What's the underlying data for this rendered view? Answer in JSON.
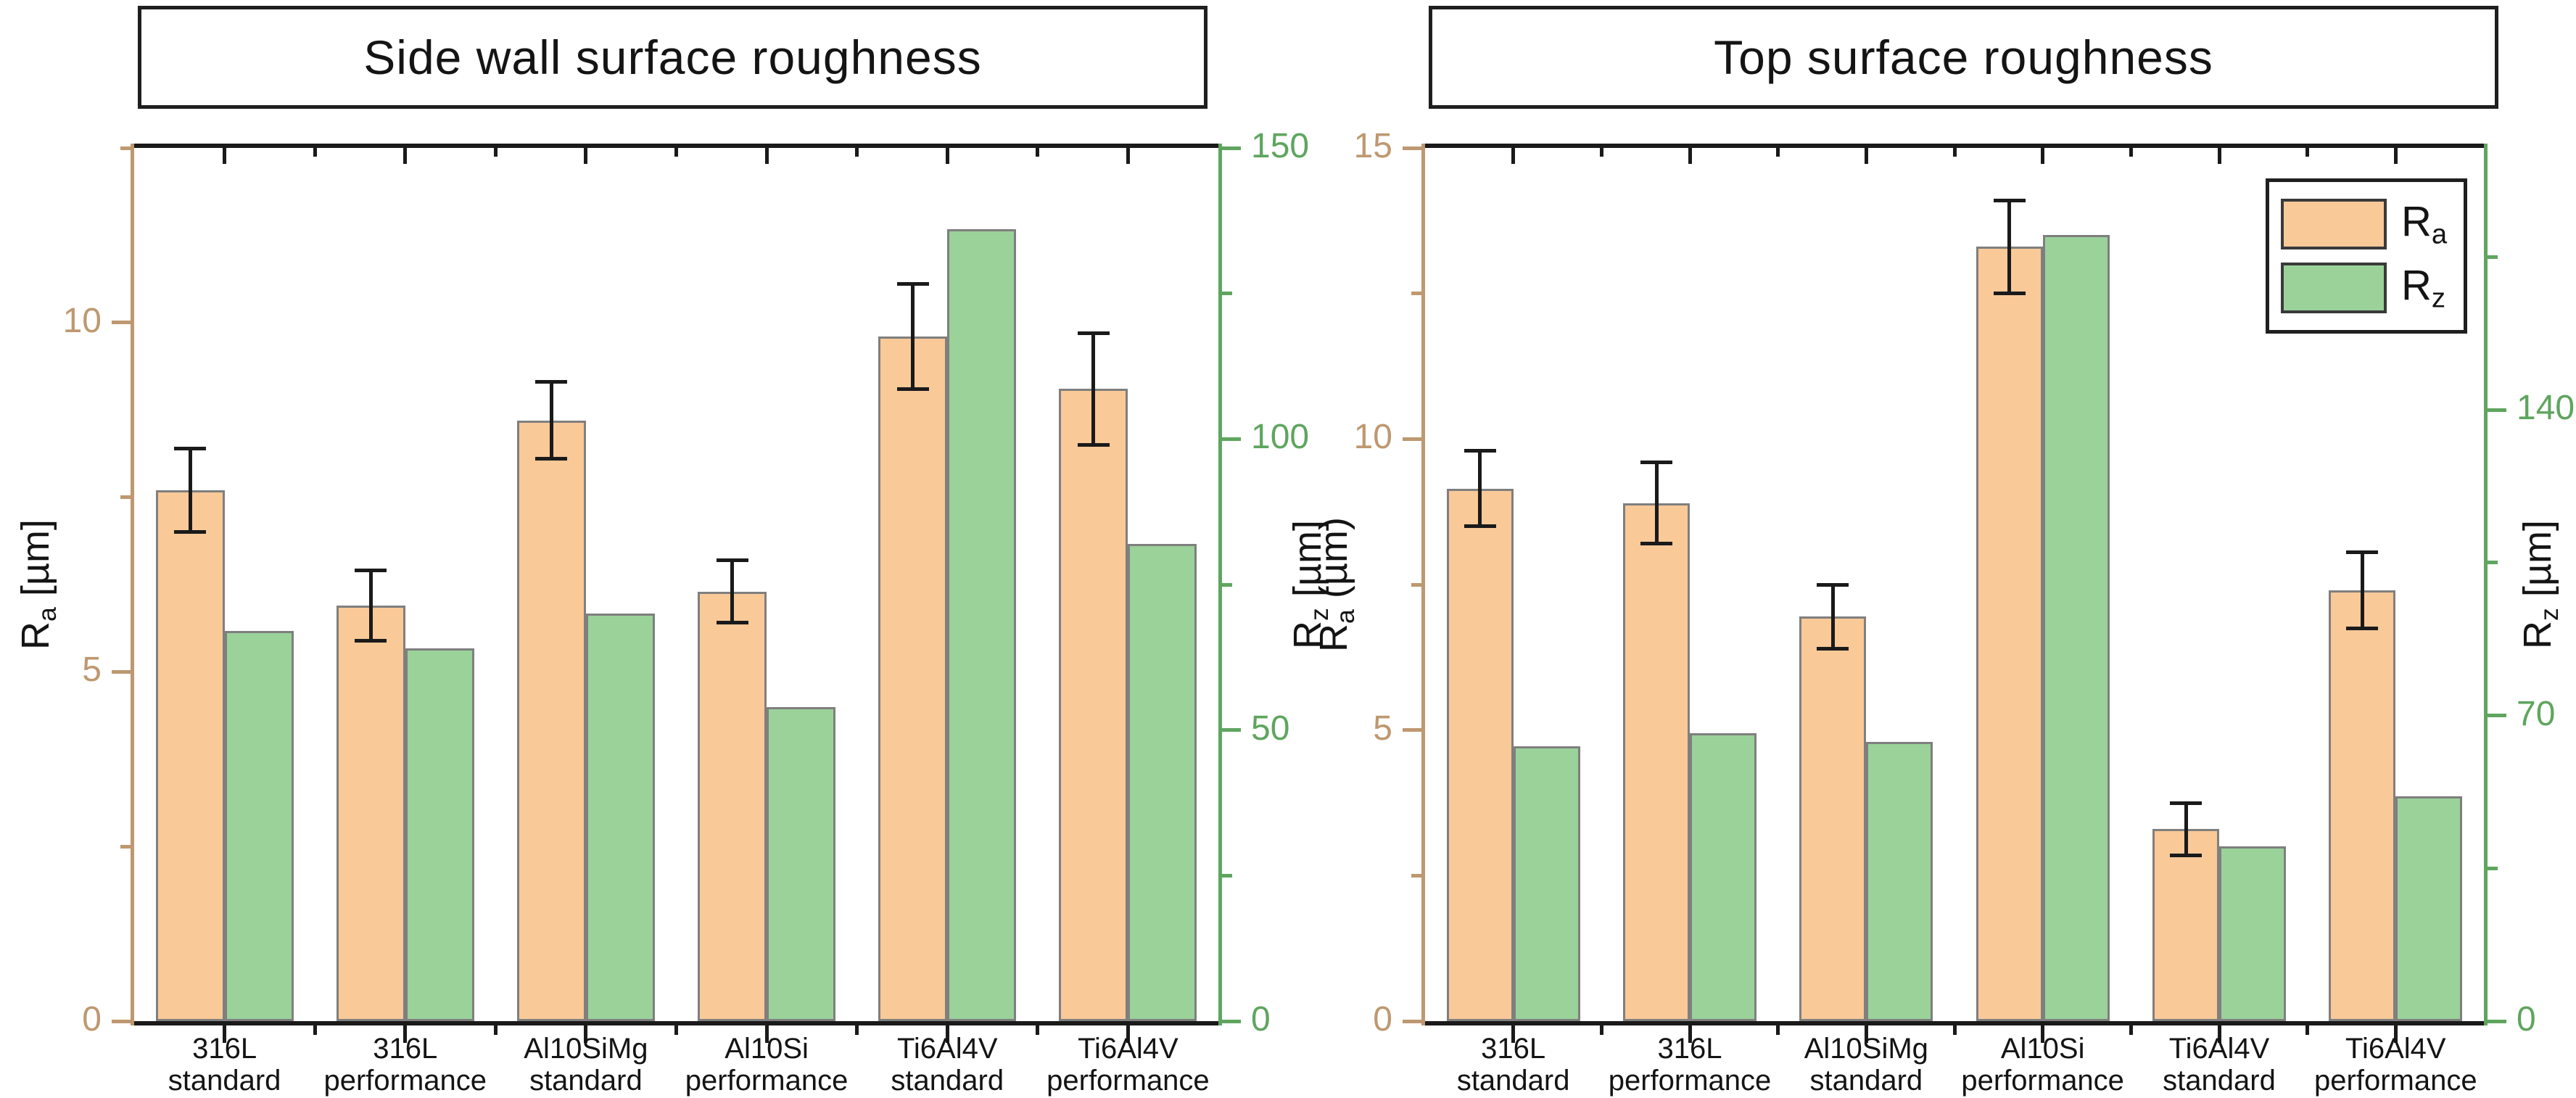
{
  "figure": {
    "background": "#ffffff"
  },
  "colors": {
    "ra_fill": "#F9C998",
    "rz_fill": "#9AD29A",
    "bar_border": "#7F7F7F",
    "ra_axis": "#BE9870",
    "rz_axis": "#5FA55F",
    "frame": "#1a1a1a",
    "error_bar": "#1a1a1a"
  },
  "legend": {
    "items": [
      {
        "series": "ra",
        "label_base": "R",
        "label_sub": "a"
      },
      {
        "series": "rz",
        "label_base": "R",
        "label_sub": "z"
      }
    ]
  },
  "chart_data": [
    {
      "type": "bar",
      "title": "Side wall surface roughness",
      "categories": [
        [
          "316L",
          "standard"
        ],
        [
          "316L",
          "performance"
        ],
        [
          "Al10SiMg",
          "standard"
        ],
        [
          "Al10Si",
          "performance"
        ],
        [
          "Ti6Al4V",
          "standard"
        ],
        [
          "Ti6Al4V",
          "performance"
        ]
      ],
      "series": [
        {
          "name": "Ra",
          "axis": "left",
          "unit": "µm",
          "color": "#F9C998",
          "values": [
            7.6,
            5.95,
            8.6,
            6.15,
            9.8,
            9.05
          ],
          "errors": [
            0.6,
            0.5,
            0.55,
            0.45,
            0.75,
            0.8
          ]
        },
        {
          "name": "Rz",
          "axis": "right",
          "unit": "µm",
          "color": "#9AD29A",
          "values": [
            67,
            64,
            70,
            54,
            136,
            82
          ]
        }
      ],
      "left_axis": {
        "label_base": "R",
        "label_sub": "a",
        "label_unit": " [µm]",
        "color": "#BE9870",
        "min": 0,
        "max": 12.5,
        "major_ticks": [
          0,
          5,
          10
        ],
        "minor_ticks": [
          2.5,
          7.5,
          12.5
        ]
      },
      "right_axis": {
        "label_base": "R",
        "label_sub": "z",
        "label_unit": " [µm]",
        "color": "#5FA55F",
        "min": 0,
        "max": 150,
        "major_ticks": [
          0,
          50,
          100,
          150
        ],
        "minor_ticks": [
          25,
          75,
          125
        ]
      },
      "grid": false,
      "legend_position": null
    },
    {
      "type": "bar",
      "title": "Top surface roughness",
      "categories": [
        [
          "316L",
          "standard"
        ],
        [
          "316L",
          "performance"
        ],
        [
          "Al10SiMg",
          "standard"
        ],
        [
          "Al10Si",
          "performance"
        ],
        [
          "Ti6Al4V",
          "standard"
        ],
        [
          "Ti6Al4V",
          "performance"
        ]
      ],
      "series": [
        {
          "name": "Ra",
          "axis": "left",
          "unit": "µm",
          "color": "#F9C998",
          "values": [
            9.15,
            8.9,
            6.95,
            13.3,
            3.3,
            7.4
          ],
          "errors": [
            0.65,
            0.7,
            0.55,
            0.8,
            0.45,
            0.65
          ]
        },
        {
          "name": "Rz",
          "axis": "right",
          "unit": "µm",
          "color": "#9AD29A",
          "values": [
            63,
            66,
            64,
            180,
            40,
            51.5
          ]
        }
      ],
      "left_axis": {
        "label_base": "R",
        "label_sub": "a",
        "label_unit": " (µm)",
        "color": "#BE9870",
        "min": 0,
        "max": 15,
        "major_ticks": [
          0,
          5,
          10,
          15
        ],
        "minor_ticks": [
          2.5,
          7.5,
          12.5
        ]
      },
      "right_axis": {
        "label_base": "R",
        "label_sub": "z",
        "label_unit": " [µm]",
        "color": "#5FA55F",
        "min": 0,
        "max": 200,
        "major_ticks": [
          0,
          70,
          140
        ],
        "minor_ticks": [
          35,
          105,
          175
        ]
      },
      "grid": false,
      "legend_position": "top-right"
    }
  ]
}
